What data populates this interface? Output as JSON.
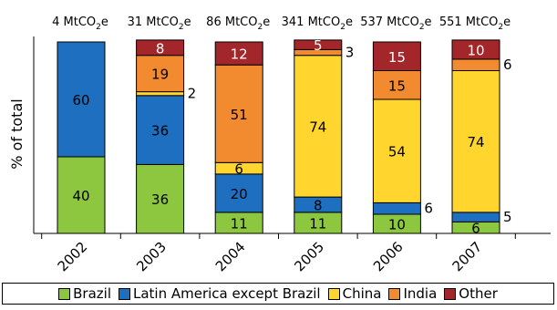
{
  "chart_data": {
    "type": "bar",
    "stacked": true,
    "ylabel": "% of total",
    "xlabel": "",
    "ylim": [
      0,
      100
    ],
    "categories": [
      "2002",
      "2003",
      "2004",
      "2005",
      "2006",
      "2007"
    ],
    "totals": [
      {
        "prefix": "4 MtCO",
        "sub": "2",
        "suffix": "e"
      },
      {
        "prefix": "31 MtCO",
        "sub": "2",
        "suffix": "e"
      },
      {
        "prefix": "86 MtCO",
        "sub": "2",
        "suffix": "e"
      },
      {
        "prefix": "341 MtCO",
        "sub": "2",
        "suffix": "e"
      },
      {
        "prefix": "537 MtCO",
        "sub": "2",
        "suffix": "e"
      },
      {
        "prefix": "551 MtCO",
        "sub": "2",
        "suffix": "e"
      }
    ],
    "series": [
      {
        "name": "Brazil",
        "color": "#8dc63f",
        "values": [
          40,
          36,
          11,
          11,
          10,
          6
        ]
      },
      {
        "name": "Latin America except Brazil",
        "color": "#1f6fc0",
        "values": [
          60,
          36,
          20,
          8,
          6,
          5
        ]
      },
      {
        "name": "China",
        "color": "#ffd52e",
        "values": [
          0,
          2,
          6,
          74,
          54,
          74
        ]
      },
      {
        "name": "India",
        "color": "#f28a30",
        "values": [
          0,
          19,
          51,
          3,
          15,
          6
        ]
      },
      {
        "name": "Other",
        "color": "#a3272a",
        "values": [
          0,
          8,
          12,
          5,
          15,
          10
        ]
      }
    ],
    "data_labels": [
      {
        "cat": 0,
        "series": 0,
        "text": "40",
        "placement": "inside"
      },
      {
        "cat": 0,
        "series": 1,
        "text": "60",
        "placement": "inside"
      },
      {
        "cat": 1,
        "series": 0,
        "text": "36",
        "placement": "inside"
      },
      {
        "cat": 1,
        "series": 1,
        "text": "36",
        "placement": "inside"
      },
      {
        "cat": 1,
        "series": 2,
        "text": "2",
        "placement": "outside"
      },
      {
        "cat": 1,
        "series": 3,
        "text": "19",
        "placement": "inside"
      },
      {
        "cat": 1,
        "series": 4,
        "text": "8",
        "placement": "inside",
        "color": "#ffffff"
      },
      {
        "cat": 2,
        "series": 0,
        "text": "11",
        "placement": "inside"
      },
      {
        "cat": 2,
        "series": 1,
        "text": "20",
        "placement": "inside"
      },
      {
        "cat": 2,
        "series": 2,
        "text": "6",
        "placement": "inside"
      },
      {
        "cat": 2,
        "series": 3,
        "text": "51",
        "placement": "inside"
      },
      {
        "cat": 2,
        "series": 4,
        "text": "12",
        "placement": "inside",
        "color": "#ffffff"
      },
      {
        "cat": 3,
        "series": 0,
        "text": "11",
        "placement": "inside"
      },
      {
        "cat": 3,
        "series": 1,
        "text": "8",
        "placement": "inside"
      },
      {
        "cat": 3,
        "series": 2,
        "text": "74",
        "placement": "inside"
      },
      {
        "cat": 3,
        "series": 3,
        "text": "3",
        "placement": "outside"
      },
      {
        "cat": 3,
        "series": 4,
        "text": "5",
        "placement": "inside",
        "color": "#ffffff"
      },
      {
        "cat": 4,
        "series": 0,
        "text": "10",
        "placement": "inside"
      },
      {
        "cat": 4,
        "series": 1,
        "text": "6",
        "placement": "outside"
      },
      {
        "cat": 4,
        "series": 2,
        "text": "54",
        "placement": "inside"
      },
      {
        "cat": 4,
        "series": 3,
        "text": "15",
        "placement": "inside"
      },
      {
        "cat": 4,
        "series": 4,
        "text": "15",
        "placement": "inside",
        "color": "#ffffff"
      },
      {
        "cat": 5,
        "series": 0,
        "text": "6",
        "placement": "inside"
      },
      {
        "cat": 5,
        "series": 1,
        "text": "5",
        "placement": "outside"
      },
      {
        "cat": 5,
        "series": 2,
        "text": "74",
        "placement": "inside"
      },
      {
        "cat": 5,
        "series": 3,
        "text": "6",
        "placement": "outside"
      },
      {
        "cat": 5,
        "series": 4,
        "text": "10",
        "placement": "inside",
        "color": "#ffffff"
      }
    ],
    "legend_position": "bottom",
    "grid": false
  }
}
